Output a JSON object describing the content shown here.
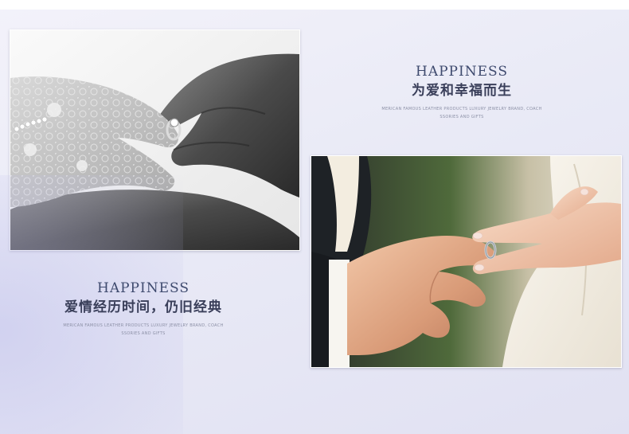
{
  "sections": [
    {
      "photo_subject": "wedding-hands-ring-black-white-photo",
      "title_en": "HAPPINESS",
      "title_cn": "为爱和幸福而生",
      "subtitle_line1": "MERICAN FAMOUS LEATHER PRODUCTS LUXURY JEWELRY BRAND, COACH",
      "subtitle_line2": "SSORIES AND GIFTS"
    },
    {
      "photo_subject": "groom-placing-ring-on-bride-finger-photo",
      "title_en": "HAPPINESS",
      "title_cn": "爱情经历时间，仍旧经典",
      "subtitle_line1": "MERICAN FAMOUS LEATHER PRODUCTS LUXURY JEWELRY BRAND, COACH",
      "subtitle_line2": "SSORIES AND GIFTS"
    }
  ],
  "colors": {
    "title": "#3e4a6e",
    "subtitle": "#8c90a6",
    "background": "#e9eaf6"
  }
}
